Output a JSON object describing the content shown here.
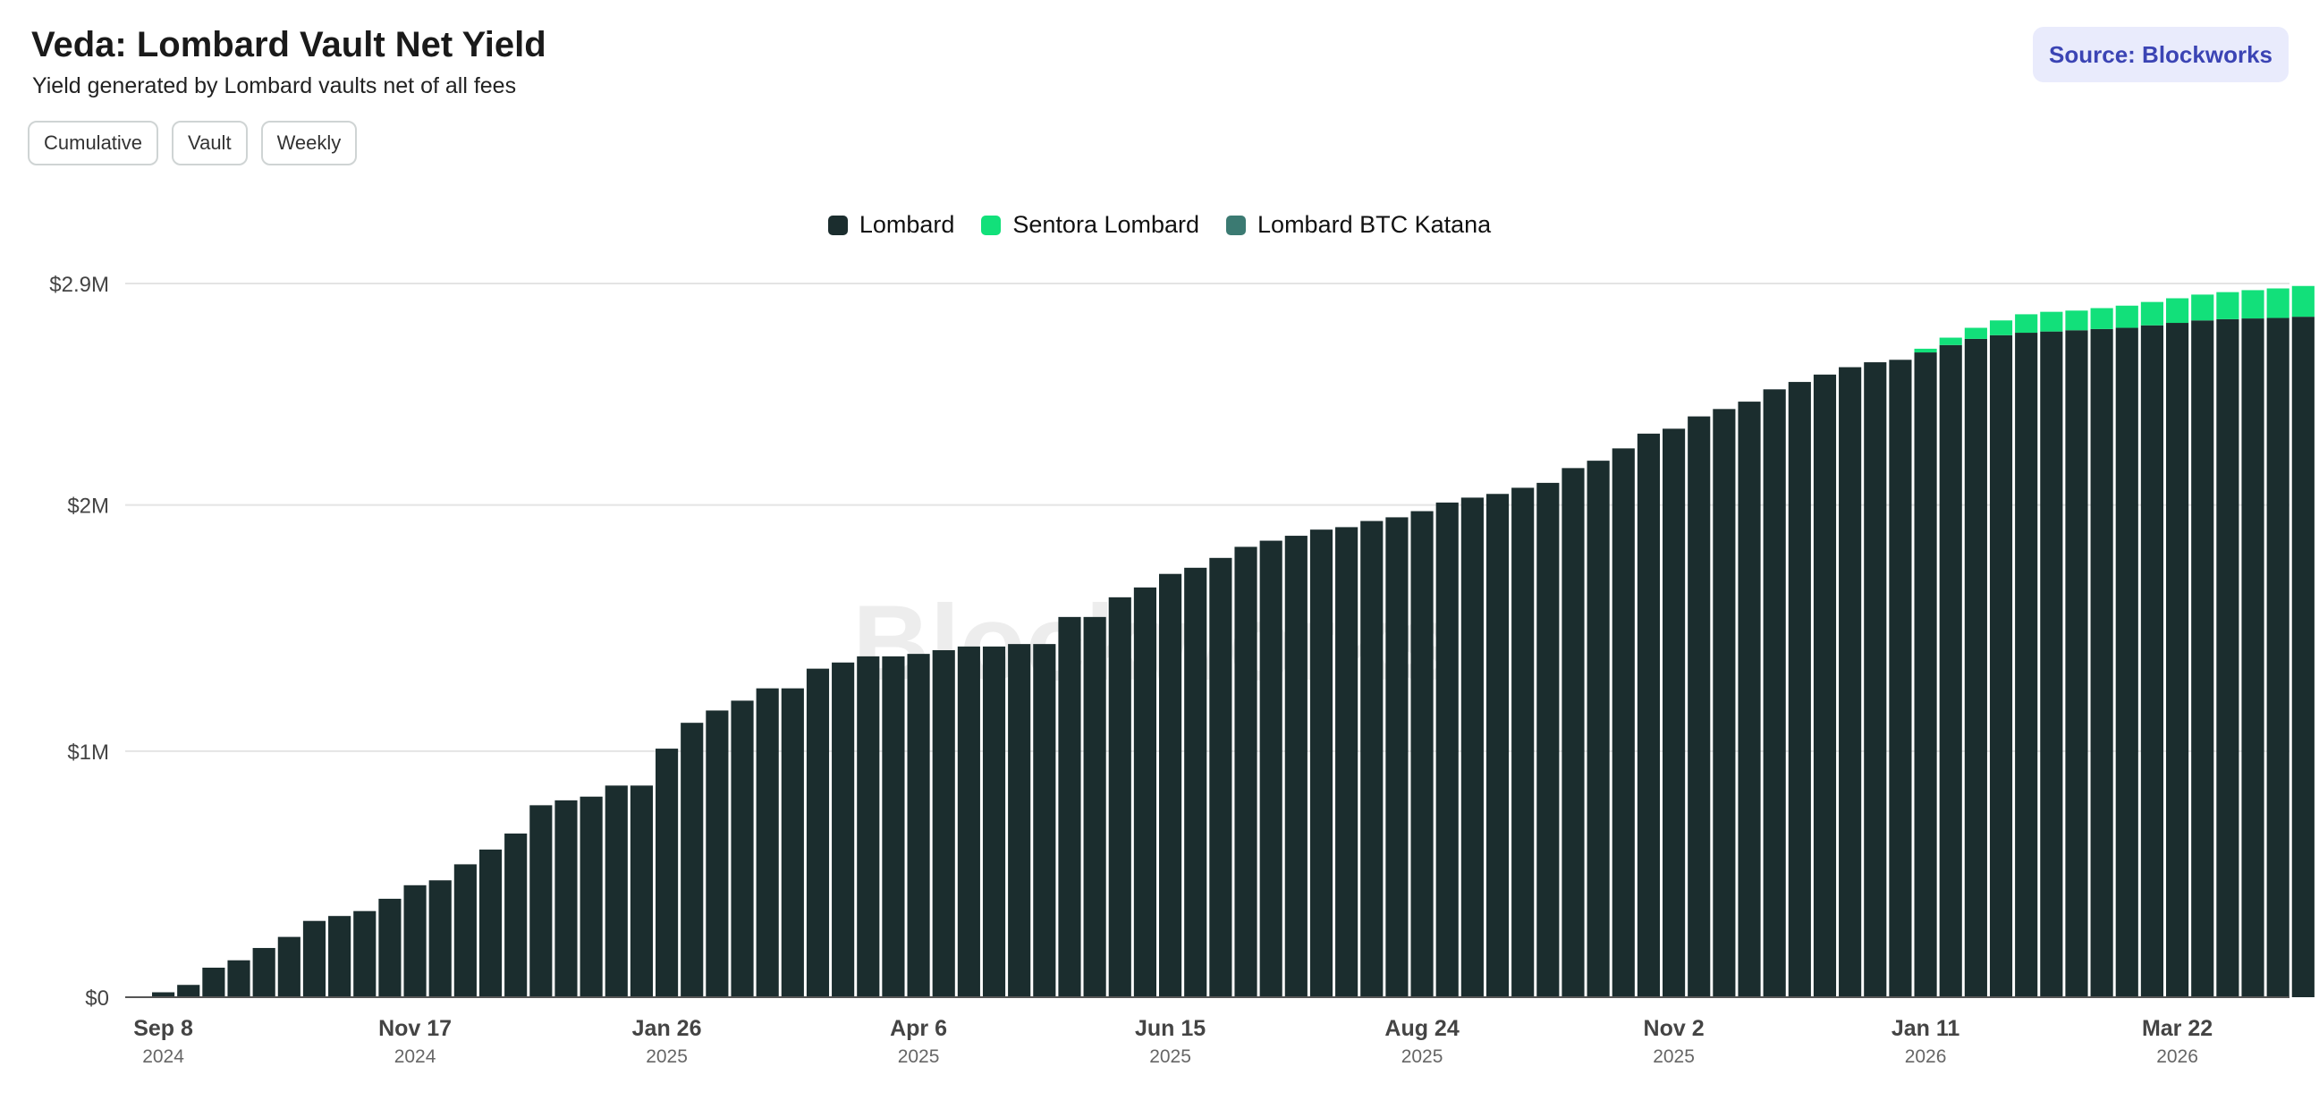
{
  "header": {
    "title": "Veda: Lombard Vault Net Yield",
    "subtitle": "Yield generated by Lombard vaults net of all fees",
    "source_label": "Source: Blockworks"
  },
  "controls": {
    "buttons": [
      "Cumulative",
      "Vault",
      "Weekly"
    ]
  },
  "colors": {
    "lombard": "#1b2d2e",
    "sentora": "#12e07a",
    "katana": "#3b7a72",
    "grid": "#e4e4e4",
    "axis_text": "#444444",
    "source_bg": "#e9ebfc",
    "source_text": "#3b44b4"
  },
  "chart_data": {
    "type": "bar",
    "stacked": true,
    "legend": [
      "Lombard",
      "Sentora Lombard",
      "Lombard BTC Katana"
    ],
    "legend_position": "top-center",
    "grid": true,
    "watermark": "Blockworks",
    "ylim": [
      0,
      2900000
    ],
    "y_ticks": [
      {
        "value": 0,
        "label": "$0"
      },
      {
        "value": 1000000,
        "label": "$1M"
      },
      {
        "value": 2000000,
        "label": "$2M"
      },
      {
        "value": 2900000,
        "label": "$2.9M"
      }
    ],
    "x_tick_labels": [
      {
        "index": 0,
        "label": "Sep 8",
        "year": "2024"
      },
      {
        "index": 10,
        "label": "Nov 17",
        "year": "2024"
      },
      {
        "index": 20,
        "label": "Jan 26",
        "year": "2025"
      },
      {
        "index": 30,
        "label": "Apr 6",
        "year": "2025"
      },
      {
        "index": 40,
        "label": "Jun 15",
        "year": "2025"
      },
      {
        "index": 50,
        "label": "Aug 24",
        "year": "2025"
      },
      {
        "index": 60,
        "label": "Nov 2",
        "year": "2025"
      },
      {
        "index": 70,
        "label": "Jan 11",
        "year": "2026"
      },
      {
        "index": 80,
        "label": "Mar 22",
        "year": "2026"
      }
    ],
    "categories": [
      "2024-09-08",
      "2024-09-15",
      "2024-09-22",
      "2024-09-29",
      "2024-10-06",
      "2024-10-13",
      "2024-10-20",
      "2024-10-27",
      "2024-11-03",
      "2024-11-10",
      "2024-11-17",
      "2024-11-24",
      "2024-12-01",
      "2024-12-08",
      "2024-12-15",
      "2024-12-22",
      "2024-12-29",
      "2025-01-05",
      "2025-01-12",
      "2025-01-19",
      "2025-01-26",
      "2025-02-02",
      "2025-02-09",
      "2025-02-16",
      "2025-02-23",
      "2025-03-02",
      "2025-03-09",
      "2025-03-16",
      "2025-03-23",
      "2025-03-30",
      "2025-04-06",
      "2025-04-13",
      "2025-04-20",
      "2025-04-27",
      "2025-05-04",
      "2025-05-11",
      "2025-05-18",
      "2025-05-25",
      "2025-06-01",
      "2025-06-08",
      "2025-06-15",
      "2025-06-22",
      "2025-06-29",
      "2025-07-06",
      "2025-07-13",
      "2025-07-20",
      "2025-07-27",
      "2025-08-03",
      "2025-08-10",
      "2025-08-17",
      "2025-08-24",
      "2025-08-31",
      "2025-09-07",
      "2025-09-14",
      "2025-09-21",
      "2025-09-28",
      "2025-10-05",
      "2025-10-12",
      "2025-10-19",
      "2025-10-26",
      "2025-11-02",
      "2025-11-09",
      "2025-11-16",
      "2025-11-23",
      "2025-11-30",
      "2025-12-07",
      "2025-12-14",
      "2025-12-21",
      "2025-12-28",
      "2026-01-04",
      "2026-01-11",
      "2026-01-18",
      "2026-01-25",
      "2026-02-01",
      "2026-02-08",
      "2026-02-15",
      "2026-02-22",
      "2026-03-01",
      "2026-03-08",
      "2026-03-15",
      "2026-03-22",
      "2026-03-29",
      "2026-04-05",
      "2026-04-12",
      "2026-04-19",
      "2026-04-26"
    ],
    "series": [
      {
        "name": "Lombard",
        "values": [
          20000,
          50000,
          120000,
          150000,
          200000,
          245000,
          310000,
          330000,
          350000,
          400000,
          455000,
          475000,
          540000,
          600000,
          665000,
          780000,
          800000,
          815000,
          860000,
          860000,
          1010000,
          1115000,
          1165000,
          1205000,
          1255000,
          1255000,
          1335000,
          1360000,
          1385000,
          1385000,
          1395000,
          1410000,
          1425000,
          1425000,
          1435000,
          1435000,
          1545000,
          1545000,
          1625000,
          1665000,
          1720000,
          1745000,
          1785000,
          1830000,
          1855000,
          1875000,
          1900000,
          1910000,
          1935000,
          1950000,
          1975000,
          2010000,
          2030000,
          2045000,
          2070000,
          2090000,
          2150000,
          2180000,
          2230000,
          2290000,
          2310000,
          2360000,
          2390000,
          2420000,
          2470000,
          2500000,
          2530000,
          2560000,
          2580000,
          2590000,
          2620000,
          2650000,
          2675000,
          2690000,
          2700000,
          2705000,
          2710000,
          2715000,
          2720000,
          2730000,
          2740000,
          2750000,
          2755000,
          2758000,
          2760000,
          2765000
        ]
      },
      {
        "name": "Sentora Lombard",
        "values": [
          0,
          0,
          0,
          0,
          0,
          0,
          0,
          0,
          0,
          0,
          0,
          0,
          0,
          0,
          0,
          0,
          0,
          0,
          0,
          0,
          0,
          0,
          0,
          0,
          0,
          0,
          0,
          0,
          0,
          0,
          0,
          0,
          0,
          0,
          0,
          0,
          0,
          0,
          0,
          0,
          0,
          0,
          0,
          0,
          0,
          0,
          0,
          0,
          0,
          0,
          0,
          0,
          0,
          0,
          0,
          0,
          0,
          0,
          0,
          0,
          0,
          0,
          0,
          0,
          0,
          0,
          0,
          0,
          0,
          0,
          15000,
          30000,
          45000,
          60000,
          75000,
          80000,
          80000,
          85000,
          90000,
          95000,
          100000,
          105000,
          110000,
          115000,
          120000,
          125000
        ]
      },
      {
        "name": "Lombard BTC Katana",
        "values": [
          0,
          0,
          0,
          0,
          0,
          0,
          0,
          0,
          0,
          0,
          0,
          0,
          0,
          0,
          0,
          0,
          0,
          0,
          0,
          0,
          0,
          0,
          0,
          0,
          0,
          0,
          0,
          0,
          0,
          0,
          0,
          0,
          0,
          0,
          0,
          0,
          0,
          0,
          0,
          0,
          0,
          0,
          0,
          0,
          0,
          0,
          0,
          0,
          0,
          0,
          0,
          0,
          0,
          0,
          0,
          0,
          0,
          0,
          0,
          0,
          0,
          0,
          0,
          0,
          0,
          0,
          0,
          0,
          0,
          0,
          0,
          0,
          0,
          0,
          0,
          0,
          0,
          0,
          0,
          0,
          0,
          0,
          0,
          0,
          0,
          0
        ]
      }
    ],
    "xlabel": "",
    "ylabel": ""
  }
}
